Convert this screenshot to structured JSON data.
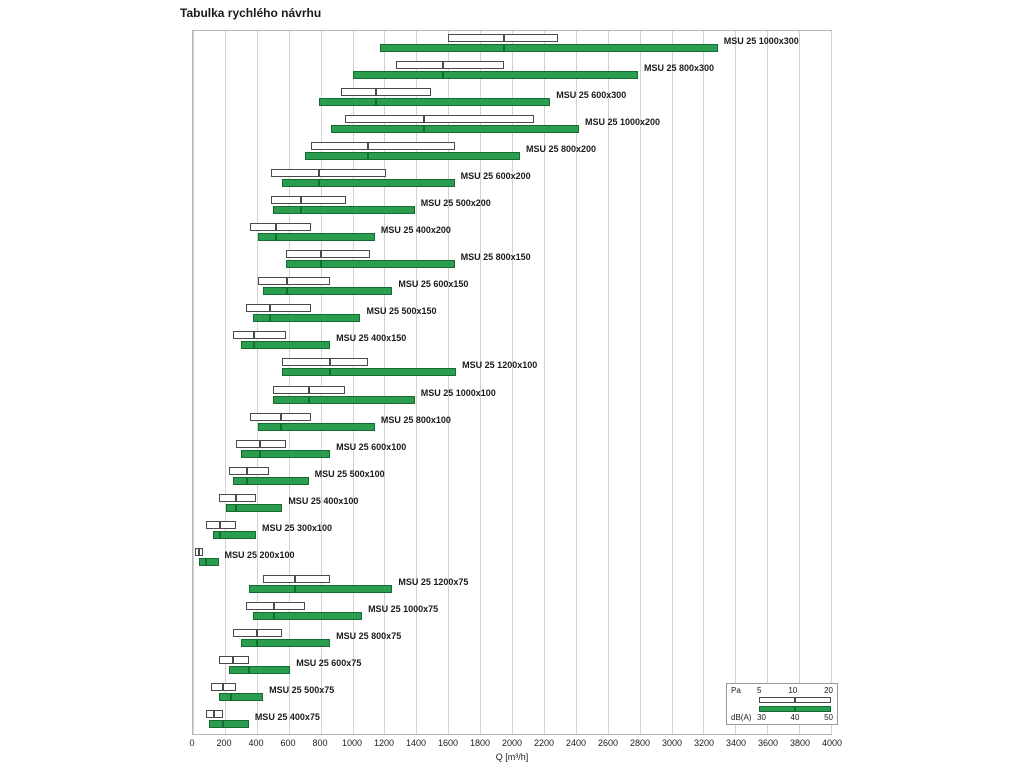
{
  "title": "Tabulka rychlého návrhu",
  "axis": {
    "label": "Q [m³/h]",
    "min": 0,
    "max": 4000,
    "step": 200
  },
  "legend": {
    "pa_label": "Pa",
    "pa_values": [
      "5",
      "10",
      "20"
    ],
    "db_label": "dB(A)",
    "db_values": [
      "30",
      "40",
      "50"
    ]
  },
  "colors": {
    "green": "#2a9d4e",
    "green_border": "#156c31",
    "grid": "#d2d2d2"
  },
  "chart_data": {
    "type": "bar",
    "title": "Tabulka rychlého návrhu",
    "xlabel": "Q [m³/h]",
    "xlim": [
      0,
      4000
    ],
    "grid": true,
    "xticks": [
      0,
      200,
      400,
      600,
      800,
      1000,
      1200,
      1400,
      1600,
      1800,
      2000,
      2200,
      2400,
      2600,
      2800,
      3000,
      3200,
      3400,
      3600,
      3800,
      4000
    ],
    "series_info": {
      "pa": "White outlined bar: airflow Q at pressure drop Pa = 5 / 10 / 20 (values in m³/h as [Q@5Pa, Q@10Pa, Q@20Pa])",
      "db": "Green bar: airflow Q at noise level dB(A) = 30 / 40 / 50 (values in m³/h as [Q@30dB, Q@40dB, Q@50dB])"
    },
    "rows": [
      {
        "label": "MSU 25 1000x300",
        "pa": [
          1600,
          1950,
          2290
        ],
        "db": [
          1175,
          1950,
          3290
        ]
      },
      {
        "label": "MSU 25 800x300",
        "pa": [
          1270,
          1570,
          1950
        ],
        "db": [
          1000,
          1570,
          2790
        ]
      },
      {
        "label": "MSU 25 600x300",
        "pa": [
          925,
          1150,
          1490
        ],
        "db": [
          790,
          1150,
          2240
        ]
      },
      {
        "label": "MSU 25 1000x200",
        "pa": [
          950,
          1450,
          2140
        ],
        "db": [
          865,
          1450,
          2420
        ]
      },
      {
        "label": "MSU 25 800x200",
        "pa": [
          740,
          1100,
          1640
        ],
        "db": [
          705,
          1100,
          2050
        ]
      },
      {
        "label": "MSU 25 600x200",
        "pa": [
          490,
          790,
          1210
        ],
        "db": [
          560,
          790,
          1640
        ]
      },
      {
        "label": "MSU 25 500x200",
        "pa": [
          490,
          680,
          960
        ],
        "db": [
          500,
          680,
          1390
        ]
      },
      {
        "label": "MSU 25 400x200",
        "pa": [
          360,
          520,
          740
        ],
        "db": [
          410,
          520,
          1140
        ]
      },
      {
        "label": "MSU 25 800x150",
        "pa": [
          580,
          800,
          1110
        ],
        "db": [
          580,
          800,
          1640
        ]
      },
      {
        "label": "MSU 25 600x150",
        "pa": [
          410,
          590,
          860
        ],
        "db": [
          440,
          590,
          1250
        ]
      },
      {
        "label": "MSU 25 500x150",
        "pa": [
          330,
          480,
          740
        ],
        "db": [
          375,
          480,
          1050
        ]
      },
      {
        "label": "MSU 25 400x150",
        "pa": [
          250,
          380,
          580
        ],
        "db": [
          300,
          380,
          860
        ]
      },
      {
        "label": "MSU 25 1200x100",
        "pa": [
          560,
          860,
          1100
        ],
        "db": [
          560,
          860,
          1650
        ]
      },
      {
        "label": "MSU 25 1000x100",
        "pa": [
          500,
          725,
          950
        ],
        "db": [
          500,
          725,
          1390
        ]
      },
      {
        "label": "MSU 25 800x100",
        "pa": [
          360,
          550,
          740
        ],
        "db": [
          410,
          550,
          1140
        ]
      },
      {
        "label": "MSU 25 600x100",
        "pa": [
          270,
          420,
          580
        ],
        "db": [
          300,
          420,
          860
        ]
      },
      {
        "label": "MSU 25 500x100",
        "pa": [
          225,
          340,
          475
        ],
        "db": [
          250,
          340,
          725
        ]
      },
      {
        "label": "MSU 25 400x100",
        "pa": [
          160,
          270,
          395
        ],
        "db": [
          205,
          270,
          560
        ]
      },
      {
        "label": "MSU 25 300x100",
        "pa": [
          80,
          170,
          270
        ],
        "db": [
          125,
          170,
          395
        ]
      },
      {
        "label": "MSU 25 200x100",
        "pa": [
          15,
          40,
          65
        ],
        "db": [
          40,
          80,
          160
        ]
      },
      {
        "label": "MSU 25 1200x75",
        "pa": [
          440,
          640,
          860
        ],
        "db": [
          350,
          640,
          1250
        ]
      },
      {
        "label": "MSU 25 1000x75",
        "pa": [
          330,
          510,
          700
        ],
        "db": [
          375,
          510,
          1060
        ]
      },
      {
        "label": "MSU 25 800x75",
        "pa": [
          250,
          400,
          560
        ],
        "db": [
          300,
          400,
          860
        ]
      },
      {
        "label": "MSU 25 600x75",
        "pa": [
          160,
          250,
          350
        ],
        "db": [
          225,
          350,
          610
        ]
      },
      {
        "label": "MSU 25 500x75",
        "pa": [
          110,
          190,
          270
        ],
        "db": [
          160,
          240,
          440
        ]
      },
      {
        "label": "MSU 25 400x75",
        "pa": [
          80,
          130,
          190
        ],
        "db": [
          100,
          190,
          350
        ]
      }
    ]
  }
}
